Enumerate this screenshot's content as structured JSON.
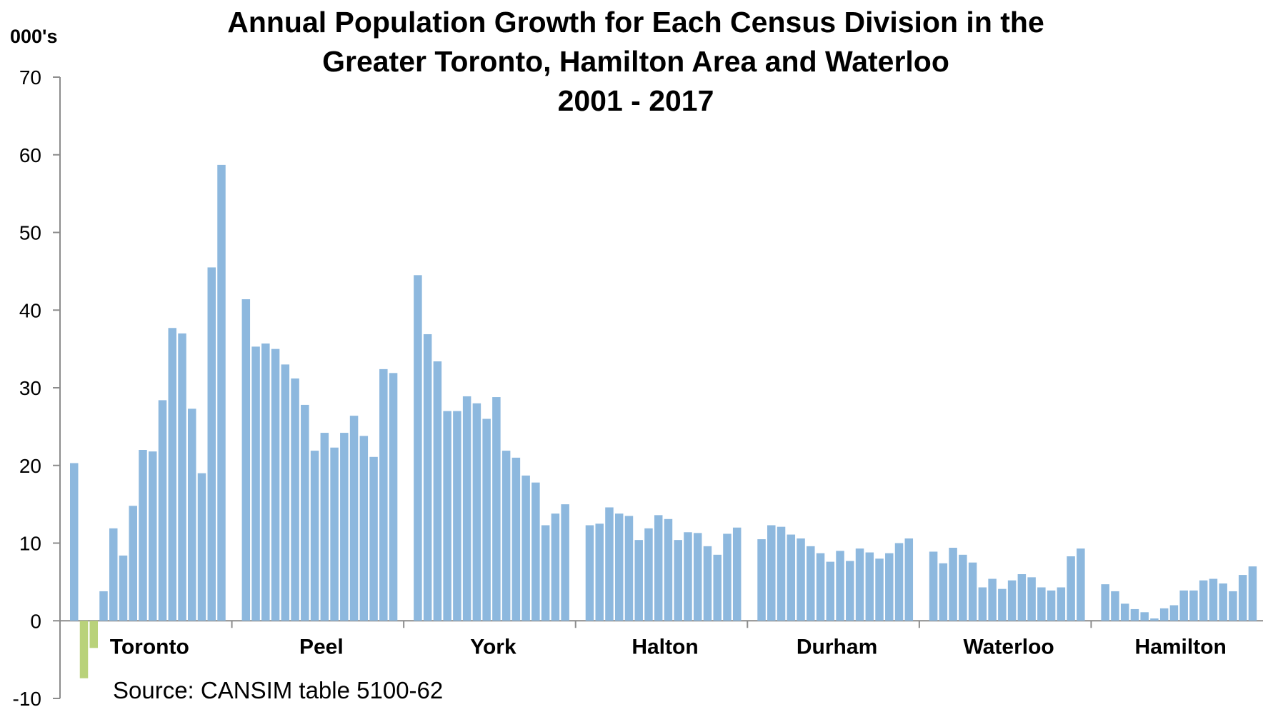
{
  "chart_data": {
    "type": "bar",
    "title_lines": [
      "Annual Population Growth for Each Census Division in the",
      "Greater Toronto, Hamilton Area and Waterloo",
      "2001 - 2017"
    ],
    "y_unit": "000's",
    "source": "Source: CANSIM table 5100-62",
    "ylim": [
      -10,
      70
    ],
    "yticks": [
      -10,
      0,
      10,
      20,
      30,
      40,
      50,
      60,
      70
    ],
    "grid": false,
    "legend": "none",
    "colors": {
      "positive": "#8DB8DE",
      "negative": "#B9D27A",
      "axis": "#8C8C8C"
    },
    "categories": [
      "Toronto",
      "Peel",
      "York",
      "Halton",
      "Durham",
      "Waterloo",
      "Hamilton"
    ],
    "groups": [
      {
        "name": "Toronto",
        "values": [
          20.3,
          -7.4,
          -3.5,
          3.8,
          11.9,
          8.4,
          14.8,
          22.0,
          21.8,
          28.4,
          37.7,
          37.0,
          27.3,
          19.0,
          45.5,
          58.7
        ]
      },
      {
        "name": "Peel",
        "values": [
          41.4,
          35.3,
          35.7,
          35.0,
          33.0,
          31.2,
          27.8,
          21.9,
          24.2,
          22.3,
          24.2,
          26.4,
          23.8,
          21.1,
          32.4,
          31.9
        ]
      },
      {
        "name": "York",
        "values": [
          44.5,
          36.9,
          33.4,
          27.0,
          27.0,
          28.9,
          28.0,
          26.0,
          28.8,
          21.9,
          21.0,
          18.7,
          17.8,
          12.3,
          13.8,
          15.0
        ]
      },
      {
        "name": "Halton",
        "values": [
          12.3,
          12.5,
          14.6,
          13.8,
          13.5,
          10.4,
          11.9,
          13.6,
          13.1,
          10.4,
          11.4,
          11.3,
          9.6,
          8.5,
          11.2,
          12.0
        ]
      },
      {
        "name": "Durham",
        "values": [
          10.5,
          12.3,
          12.1,
          11.1,
          10.6,
          9.6,
          8.7,
          7.6,
          9.0,
          7.7,
          9.3,
          8.8,
          8.0,
          8.7,
          10.0,
          10.6
        ]
      },
      {
        "name": "Waterloo",
        "values": [
          8.9,
          7.4,
          9.4,
          8.5,
          7.5,
          4.3,
          5.4,
          4.1,
          5.2,
          6.0,
          5.6,
          4.3,
          3.9,
          4.3,
          8.3,
          9.3
        ]
      },
      {
        "name": "Hamilton",
        "values": [
          4.7,
          3.8,
          2.2,
          1.5,
          1.1,
          0.3,
          1.6,
          2.0,
          3.9,
          3.9,
          5.2,
          5.4,
          4.8,
          3.8,
          5.9,
          7.0
        ]
      }
    ]
  }
}
